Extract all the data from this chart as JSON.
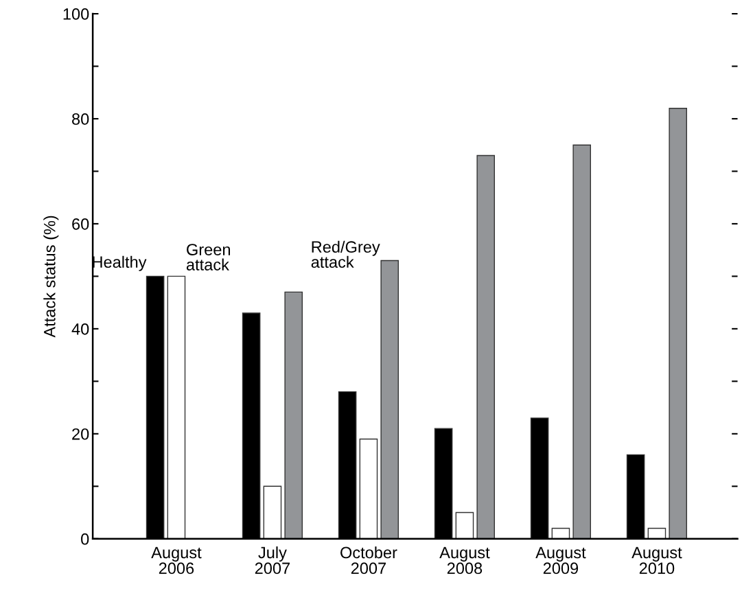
{
  "chart_data": {
    "type": "bar",
    "ylabel": "Attack status (%)",
    "categories": [
      "August\n2006",
      "July\n2007",
      "October\n2007",
      "August\n2008",
      "August\n2009",
      "August\n2010"
    ],
    "series": [
      {
        "name": "Healthy",
        "color": "#000000",
        "values": [
          50,
          43,
          28,
          21,
          23,
          16
        ]
      },
      {
        "name": "Green\nattack",
        "color": "#ffffff",
        "values": [
          50,
          10,
          19,
          5,
          2,
          2
        ]
      },
      {
        "name": "Red/Grey\nattack",
        "color": "#939598",
        "values": [
          null,
          47,
          53,
          73,
          75,
          82
        ]
      }
    ],
    "ylim": [
      0,
      100
    ],
    "yticks": [
      0,
      {
        "value": 10,
        "label": null
      },
      20,
      {
        "value": 30,
        "label": null
      },
      40,
      {
        "value": 50,
        "label": null
      },
      60,
      {
        "value": 70,
        "label": null
      },
      80,
      {
        "value": 90,
        "label": null
      },
      100
    ],
    "grid": false,
    "legend": false
  }
}
